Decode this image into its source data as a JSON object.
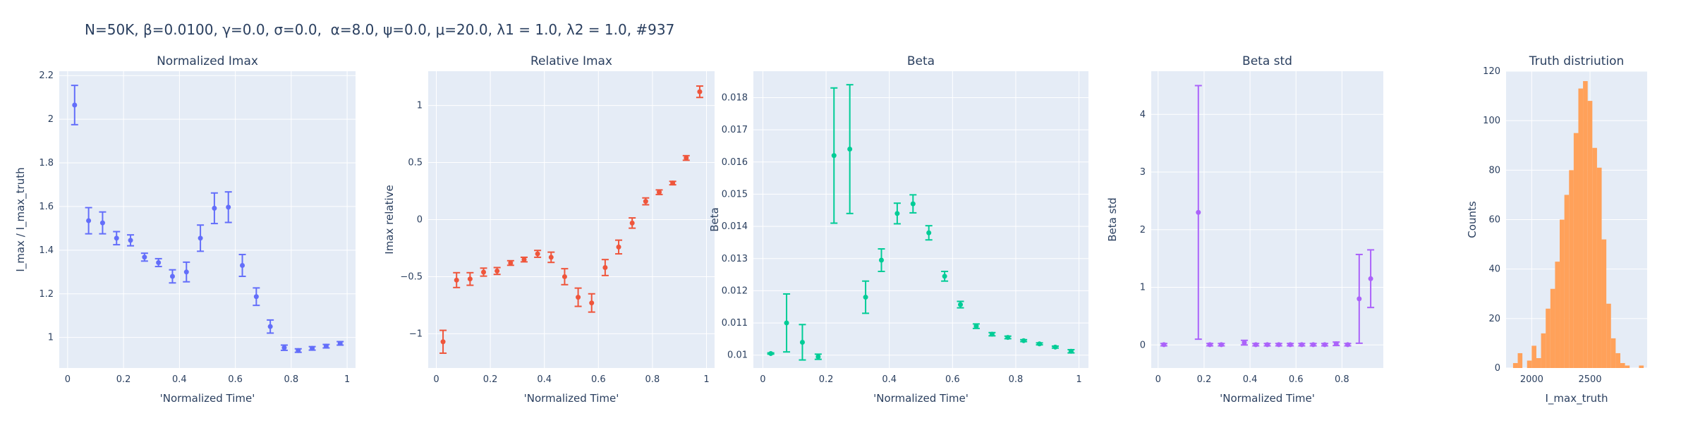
{
  "suptitle": "N=50K, β=0.0100, γ=0.0, σ=0.0,  α=8.0, ψ=0.0, μ=20.0, λ1 = 1.0, λ2 = 1.0, #937",
  "chart_data": [
    {
      "type": "scatter",
      "title": "Normalized Imax",
      "xlabel": "'Normalized Time'",
      "ylabel": "I_max / I_max_truth",
      "color": "#636efa",
      "xlim": [
        -0.03,
        1.03
      ],
      "ylim": [
        0.86,
        2.22
      ],
      "xticks": [
        0,
        0.2,
        0.4,
        0.6,
        0.8,
        1
      ],
      "xtick_labels": [
        "0",
        "0.2",
        "0.4",
        "0.6",
        "0.8",
        "1"
      ],
      "yticks": [
        1,
        1.2,
        1.4,
        1.6,
        1.8,
        2,
        2.2
      ],
      "ytick_labels": [
        "1",
        "1.2",
        "1.4",
        "1.6",
        "1.8",
        "2",
        "2.2"
      ],
      "x": [
        0.025,
        0.075,
        0.125,
        0.175,
        0.225,
        0.275,
        0.325,
        0.375,
        0.425,
        0.475,
        0.525,
        0.575,
        0.625,
        0.675,
        0.725,
        0.775,
        0.825,
        0.875,
        0.925,
        0.975
      ],
      "y": [
        2.065,
        1.535,
        1.525,
        1.455,
        1.445,
        1.368,
        1.343,
        1.28,
        1.3,
        1.455,
        1.592,
        1.597,
        1.33,
        1.187,
        1.05,
        0.953,
        0.94,
        0.95,
        0.96,
        0.973
      ],
      "err": [
        0.09,
        0.06,
        0.05,
        0.03,
        0.025,
        0.018,
        0.018,
        0.03,
        0.045,
        0.06,
        0.07,
        0.07,
        0.05,
        0.04,
        0.03,
        0.012,
        0.008,
        0.008,
        0.008,
        0.008
      ]
    },
    {
      "type": "scatter",
      "title": "Relative Imax",
      "xlabel": "'Normalized Time'",
      "ylabel": "Imax relative",
      "color": "#ef553b",
      "xlim": [
        -0.03,
        1.03
      ],
      "ylim": [
        -1.3,
        1.3
      ],
      "xticks": [
        0,
        0.2,
        0.4,
        0.6,
        0.8,
        1
      ],
      "xtick_labels": [
        "0",
        "0.2",
        "0.4",
        "0.6",
        "0.8",
        "1"
      ],
      "yticks": [
        -1,
        -0.5,
        0,
        0.5,
        1
      ],
      "ytick_labels": [
        "−1",
        "−0.5",
        "0",
        "0.5",
        "1"
      ],
      "x": [
        0.025,
        0.075,
        0.125,
        0.175,
        0.225,
        0.275,
        0.325,
        0.375,
        0.425,
        0.475,
        0.525,
        0.575,
        0.625,
        0.675,
        0.725,
        0.775,
        0.825,
        0.875,
        0.925,
        0.975
      ],
      "y": [
        -1.07,
        -0.53,
        -0.52,
        -0.46,
        -0.45,
        -0.38,
        -0.35,
        -0.3,
        -0.33,
        -0.5,
        -0.68,
        -0.73,
        -0.42,
        -0.24,
        -0.03,
        0.16,
        0.24,
        0.32,
        0.54,
        1.12
      ],
      "err": [
        0.1,
        0.065,
        0.055,
        0.035,
        0.03,
        0.02,
        0.02,
        0.03,
        0.045,
        0.07,
        0.08,
        0.08,
        0.07,
        0.06,
        0.045,
        0.03,
        0.02,
        0.015,
        0.02,
        0.05
      ]
    },
    {
      "type": "scatter",
      "title": "Beta",
      "xlabel": "'Normalized Time'",
      "ylabel": "Beta",
      "color": "#00cc96",
      "xlim": [
        -0.03,
        1.03
      ],
      "ylim": [
        0.0096,
        0.01882
      ],
      "xticks": [
        0,
        0.2,
        0.4,
        0.6,
        0.8,
        1
      ],
      "xtick_labels": [
        "0",
        "0.2",
        "0.4",
        "0.6",
        "0.8",
        "1"
      ],
      "yticks": [
        0.01,
        0.011,
        0.012,
        0.013,
        0.014,
        0.015,
        0.016,
        0.017,
        0.018
      ],
      "ytick_labels": [
        "0.01",
        "0.011",
        "0.012",
        "0.013",
        "0.014",
        "0.015",
        "0.016",
        "0.017",
        "0.018"
      ],
      "x": [
        0.025,
        0.075,
        0.125,
        0.175,
        0.225,
        0.275,
        0.325,
        0.375,
        0.425,
        0.475,
        0.525,
        0.575,
        0.625,
        0.675,
        0.725,
        0.775,
        0.825,
        0.875,
        0.925,
        0.975
      ],
      "y": [
        0.01005,
        0.011,
        0.0104,
        0.00995,
        0.0162,
        0.0164,
        0.0118,
        0.01295,
        0.0144,
        0.0147,
        0.0138,
        0.01245,
        0.01157,
        0.0109,
        0.01065,
        0.01055,
        0.01045,
        0.01035,
        0.01025,
        0.01012
      ],
      "err": [
        2e-05,
        0.0009,
        0.00055,
        8e-05,
        0.0021,
        0.002,
        0.0005,
        0.00035,
        0.00032,
        0.00028,
        0.00022,
        0.00015,
        0.0001,
        7e-05,
        5e-05,
        4e-05,
        3e-05,
        3e-05,
        3e-05,
        5e-05
      ]
    },
    {
      "type": "scatter",
      "title": "Beta std",
      "xlabel": "'Normalized Time'",
      "ylabel": "Beta std",
      "color": "#ab63fa",
      "xlim": [
        -0.03,
        0.98
      ],
      "ylim": [
        -0.4,
        4.75
      ],
      "xticks": [
        0,
        0.2,
        0.4,
        0.6,
        0.8
      ],
      "xtick_labels": [
        "0",
        "0.2",
        "0.4",
        "0.6",
        "0.8"
      ],
      "yticks": [
        0,
        1,
        2,
        3,
        4
      ],
      "ytick_labels": [
        "0",
        "1",
        "2",
        "3",
        "4"
      ],
      "x": [
        0.025,
        0.175,
        0.225,
        0.275,
        0.375,
        0.425,
        0.475,
        0.525,
        0.575,
        0.625,
        0.675,
        0.725,
        0.775,
        0.825,
        0.875,
        0.925
      ],
      "y": [
        0.005,
        2.3,
        0.005,
        0.005,
        0.04,
        0.005,
        0.005,
        0.005,
        0.005,
        0.005,
        0.005,
        0.005,
        0.02,
        0.005,
        0.8,
        1.15
      ],
      "err": [
        0.02,
        2.2,
        0.02,
        0.02,
        0.04,
        0.02,
        0.02,
        0.02,
        0.02,
        0.02,
        0.02,
        0.02,
        0.03,
        0.02,
        0.77,
        0.5
      ]
    },
    {
      "type": "bar",
      "title": "Truth distriution",
      "xlabel": "I_max_truth",
      "ylabel": "Counts",
      "color": "#ffa15a",
      "xlim": [
        1780,
        2990
      ],
      "ylim": [
        0,
        120
      ],
      "xticks": [
        2000,
        2500
      ],
      "xtick_labels": [
        "2000",
        "2500"
      ],
      "yticks": [
        0,
        20,
        40,
        60,
        80,
        100,
        120
      ],
      "ytick_labels": [
        "0",
        "20",
        "40",
        "60",
        "80",
        "100",
        "120"
      ],
      "bin_start": 1800,
      "bin_width": 40,
      "counts": [
        0,
        2,
        6,
        0,
        3,
        9,
        4,
        14,
        24,
        32,
        43,
        60,
        70,
        80,
        95,
        113,
        116,
        108,
        89,
        81,
        52,
        26,
        12,
        6,
        2,
        1,
        0,
        0,
        1
      ]
    }
  ]
}
